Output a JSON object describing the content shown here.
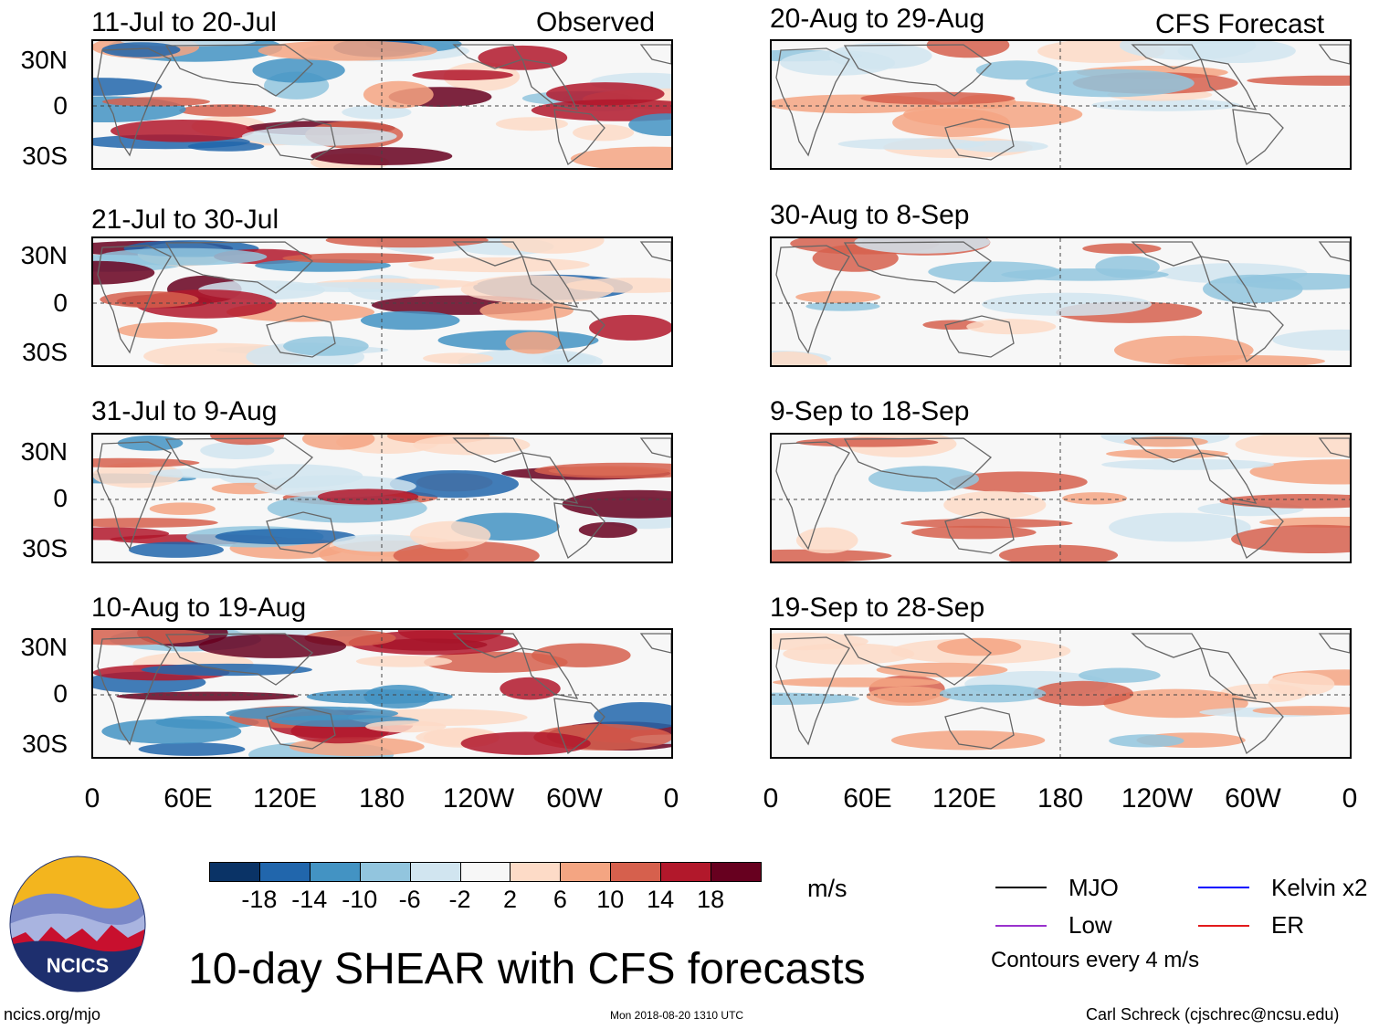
{
  "observed_label": "Observed",
  "forecast_label": "CFS Forecast",
  "left_panels": [
    {
      "title": "11-Jul to 20-Jul"
    },
    {
      "title": "21-Jul to 30-Jul"
    },
    {
      "title": "31-Jul to 9-Aug"
    },
    {
      "title": "10-Aug to 19-Aug"
    }
  ],
  "right_panels": [
    {
      "title": "20-Aug to 29-Aug"
    },
    {
      "title": "30-Aug to 8-Sep"
    },
    {
      "title": "9-Sep to 18-Sep"
    },
    {
      "title": "19-Sep to 28-Sep"
    }
  ],
  "y_labels": [
    "30N",
    "0",
    "30S"
  ],
  "x_labels": [
    "0",
    "60E",
    "120E",
    "180",
    "120W",
    "60W",
    "0"
  ],
  "colorbar": {
    "colors": [
      "#0a3366",
      "#2166ac",
      "#4393c3",
      "#92c5de",
      "#d1e5f0",
      "#f7f7f7",
      "#fddbc7",
      "#f4a582",
      "#d6604d",
      "#b2182b",
      "#67001f"
    ],
    "labels": [
      "-18",
      "-14",
      "-10",
      "-6",
      "-2",
      "2",
      "6",
      "10",
      "14",
      "18"
    ],
    "units": "m/s"
  },
  "legend": {
    "items": [
      {
        "label": "MJO",
        "color": "#000000"
      },
      {
        "label": "Kelvin x2",
        "color": "#0000ff"
      },
      {
        "label": "Low",
        "color": "#9a32cd"
      },
      {
        "label": "ER",
        "color": "#e31a1c"
      }
    ],
    "note": "Contours every 4 m/s"
  },
  "logo_text": "NCICS",
  "main_title": "10-day SHEAR with CFS forecasts",
  "footer": {
    "left": "ncics.org/mjo",
    "center": "Mon 2018-08-20 1310 UTC",
    "right": "Carl Schreck (cjschrec@ncsu.edu)"
  }
}
